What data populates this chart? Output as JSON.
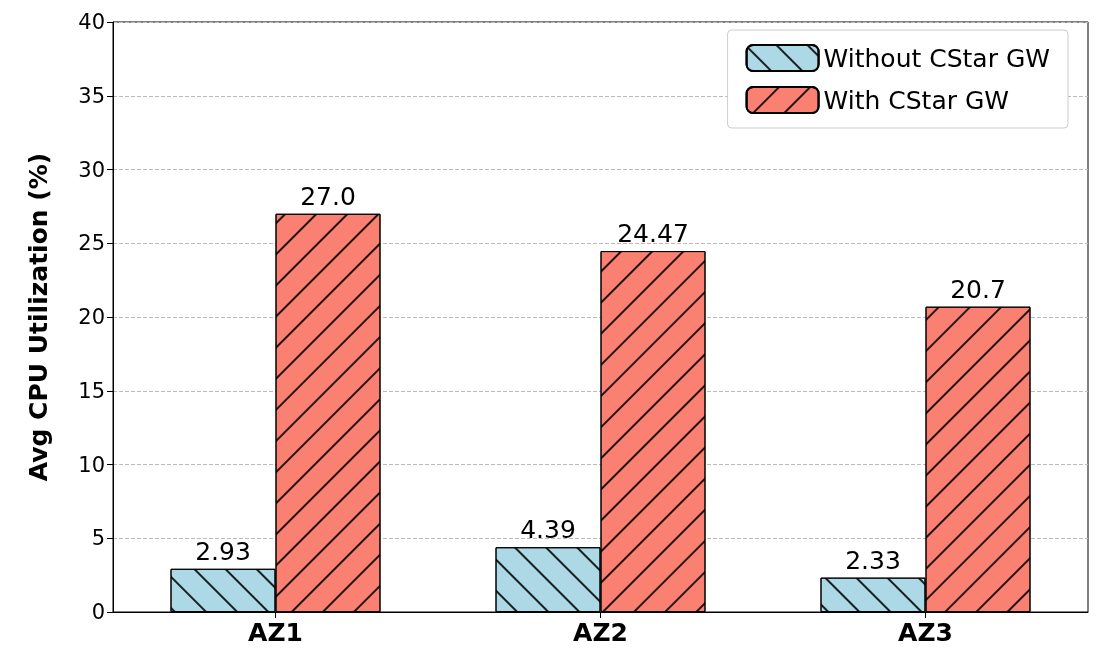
{
  "chart_data": {
    "type": "bar",
    "ylabel": "Avg CPU Utilization (%)",
    "categories": [
      "AZ1",
      "AZ2",
      "AZ3"
    ],
    "series": [
      {
        "name": "Without CStar GW",
        "color": "#add8e6",
        "values": [
          2.93,
          4.39,
          2.33
        ],
        "value_labels": [
          "2.93",
          "4.39",
          "2.33"
        ]
      },
      {
        "name": "With CStar GW",
        "color": "#fa8072",
        "values": [
          27.0,
          24.47,
          20.7
        ],
        "value_labels": [
          "27.0",
          "24.47",
          "20.7"
        ]
      }
    ],
    "ylim": [
      0,
      40
    ],
    "yticks": [
      0,
      5,
      10,
      15,
      20,
      25,
      30,
      35,
      40
    ],
    "grid": "y",
    "legend": "top right"
  }
}
